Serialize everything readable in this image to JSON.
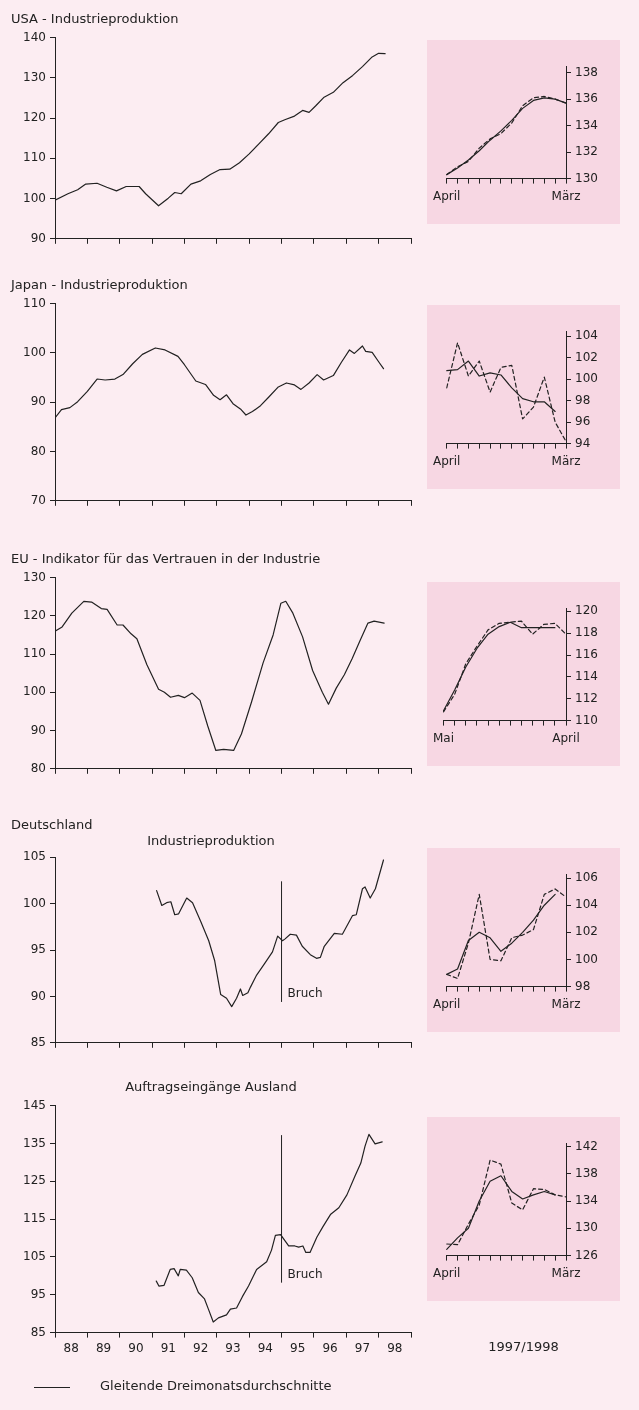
{
  "chart_data": [
    {
      "type": "line",
      "title": "USA - Industrieproduktion",
      "x": [
        88.0,
        88.4,
        88.7,
        88.95,
        89.3,
        89.6,
        89.9,
        90.2,
        90.6,
        90.8,
        91.2,
        91.5,
        91.7,
        91.9,
        92.2,
        92.5,
        92.8,
        93.1,
        93.4,
        93.7,
        94.0,
        94.3,
        94.6,
        94.9,
        95.1,
        95.4,
        95.65,
        95.85,
        96.05,
        96.3,
        96.6,
        96.9,
        97.2,
        97.5,
        97.8,
        98.0,
        98.2
      ],
      "values": [
        99.6,
        101.2,
        102.2,
        103.6,
        103.8,
        102.8,
        101.9,
        103.0,
        103.0,
        101.2,
        98.2,
        100.1,
        101.5,
        101.2,
        103.6,
        104.4,
        106.0,
        107.2,
        107.3,
        108.9,
        111.1,
        113.6,
        116.1,
        118.9,
        119.6,
        120.5,
        121.9,
        121.4,
        123.0,
        125.1,
        126.4,
        128.8,
        130.6,
        132.8,
        135.2,
        136.1,
        136.0
      ],
      "color": "#222222",
      "xlim": [
        88,
        99
      ],
      "xticks": [
        {
          "value": 88,
          "label": null
        },
        {
          "value": 89,
          "label": null
        },
        {
          "value": 90,
          "label": null
        },
        {
          "value": 91,
          "label": null
        },
        {
          "value": 92,
          "label": null
        },
        {
          "value": 93,
          "label": null
        },
        {
          "value": 94,
          "label": null
        },
        {
          "value": 95,
          "label": null
        },
        {
          "value": 96,
          "label": null
        },
        {
          "value": 97,
          "label": null
        },
        {
          "value": 98,
          "label": null
        },
        {
          "value": 99,
          "label": null
        }
      ],
      "ylim": [
        90,
        140
      ],
      "yticks": [
        90,
        100,
        110,
        120,
        130,
        140
      ],
      "tick_labels": "y"
    },
    {
      "type": "line",
      "categories": [
        "April",
        null,
        null,
        null,
        null,
        null,
        null,
        null,
        null,
        null,
        null,
        "März"
      ],
      "series": [
        {
          "color": "#222222",
          "axis": "y2",
          "values": [
            130.3,
            130.8,
            131.4,
            132.1,
            132.9,
            133.6,
            134.4,
            135.3,
            135.9,
            136.1,
            136.0,
            135.7
          ]
        },
        {
          "color": "#222222",
          "axis": "y2",
          "line_style": "dashed",
          "values": [
            130.3,
            130.9,
            131.3,
            132.3,
            133.0,
            133.4,
            134.2,
            135.5,
            136.1,
            136.2,
            136.0,
            135.7
          ]
        }
      ],
      "y2lim": [
        130,
        138.5
      ],
      "y2ticks": [
        130,
        132,
        134,
        136,
        138
      ]
    },
    {
      "type": "line",
      "title": "Japan - Industrieproduktion",
      "x": [
        88.0,
        88.2,
        88.46,
        88.7,
        89.0,
        89.3,
        89.55,
        89.85,
        90.1,
        90.4,
        90.7,
        91.1,
        91.4,
        91.8,
        92.0,
        92.35,
        92.65,
        92.9,
        93.1,
        93.3,
        93.5,
        93.75,
        93.9,
        94.1,
        94.35,
        94.6,
        94.9,
        95.15,
        95.4,
        95.6,
        95.85,
        96.1,
        96.3,
        96.6,
        96.85,
        97.1,
        97.25,
        97.5,
        97.6,
        97.8,
        98.0,
        98.15
      ],
      "values": [
        86.8,
        88.5,
        88.9,
        90.1,
        92.2,
        94.7,
        94.5,
        94.7,
        95.6,
        97.8,
        99.7,
        101.0,
        100.6,
        99.3,
        97.6,
        94.3,
        93.6,
        91.4,
        90.5,
        91.5,
        89.7,
        88.5,
        87.4,
        88.1,
        89.3,
        91.0,
        93.1,
        93.9,
        93.5,
        92.6,
        93.9,
        95.6,
        94.5,
        95.4,
        98.1,
        100.6,
        99.9,
        101.4,
        100.3,
        100.1,
        98.2,
        96.8
      ],
      "color": "#222222",
      "xlim": [
        88,
        99
      ],
      "xticks": [
        {
          "value": 88,
          "label": null
        },
        {
          "value": 89,
          "label": null
        },
        {
          "value": 90,
          "label": null
        },
        {
          "value": 91,
          "label": null
        },
        {
          "value": 92,
          "label": null
        },
        {
          "value": 93,
          "label": null
        },
        {
          "value": 94,
          "label": null
        },
        {
          "value": 95,
          "label": null
        },
        {
          "value": 96,
          "label": null
        },
        {
          "value": 97,
          "label": null
        },
        {
          "value": 98,
          "label": null
        },
        {
          "value": 99,
          "label": null
        }
      ],
      "ylim": [
        70,
        110
      ],
      "yticks": [
        70,
        80,
        90,
        100,
        110
      ],
      "tick_labels": "y"
    },
    {
      "type": "line",
      "categories": [
        "April",
        null,
        null,
        null,
        null,
        null,
        null,
        null,
        null,
        null,
        null,
        "März"
      ],
      "series": [
        {
          "color": "#222222",
          "axis": "y2",
          "values": [
            100.8,
            100.9,
            101.7,
            100.3,
            100.6,
            100.4,
            99.2,
            98.2,
            97.9,
            97.9,
            97.0,
            null
          ]
        },
        {
          "color": "#222222",
          "axis": "y2",
          "line_style": "dashed",
          "values": [
            99.2,
            103.4,
            100.3,
            101.7,
            98.8,
            101.1,
            101.3,
            96.3,
            97.4,
            100.2,
            96.0,
            94.2
          ]
        }
      ],
      "y2lim": [
        94,
        104.5
      ],
      "y2ticks": [
        94,
        96,
        98,
        100,
        102,
        104
      ]
    },
    {
      "type": "line",
      "title": "EU - Indikator für das Vertrauen in der Industrie",
      "x": [
        88.0,
        88.22,
        88.52,
        88.89,
        89.13,
        89.43,
        89.61,
        89.92,
        90.1,
        90.35,
        90.53,
        90.84,
        91.2,
        91.38,
        91.57,
        91.81,
        92.0,
        92.24,
        92.48,
        92.72,
        92.97,
        93.21,
        93.52,
        93.76,
        94.07,
        94.43,
        94.74,
        94.98,
        95.13,
        95.35,
        95.65,
        95.96,
        96.26,
        96.45,
        96.69,
        96.94,
        97.18,
        97.42,
        97.67,
        97.86,
        98.17
      ],
      "values": [
        116.0,
        117.1,
        120.7,
        123.8,
        123.6,
        121.9,
        121.7,
        117.6,
        117.6,
        115.3,
        114.0,
        107.2,
        100.8,
        100.0,
        98.7,
        99.2,
        98.6,
        99.8,
        97.9,
        91.2,
        84.8,
        85.1,
        84.8,
        89.1,
        97.4,
        107.7,
        115.0,
        123.3,
        123.8,
        120.7,
        114.5,
        105.7,
        100.0,
        96.9,
        101.1,
        104.6,
        108.8,
        113.4,
        118.1,
        118.6,
        118.1
      ],
      "color": "#222222",
      "xlim": [
        88,
        99
      ],
      "xticks": [
        {
          "value": 88,
          "label": null
        },
        {
          "value": 89,
          "label": null
        },
        {
          "value": 90,
          "label": null
        },
        {
          "value": 91,
          "label": null
        },
        {
          "value": 92,
          "label": null
        },
        {
          "value": 93,
          "label": null
        },
        {
          "value": 94,
          "label": null
        },
        {
          "value": 95,
          "label": null
        },
        {
          "value": 96,
          "label": null
        },
        {
          "value": 97,
          "label": null
        },
        {
          "value": 98,
          "label": null
        },
        {
          "value": 99,
          "label": null
        }
      ],
      "ylim": [
        80,
        130
      ],
      "yticks": [
        80,
        90,
        100,
        110,
        120,
        130
      ],
      "tick_labels": "y"
    },
    {
      "type": "line",
      "categories": [
        "Mai",
        null,
        null,
        null,
        null,
        null,
        null,
        null,
        null,
        null,
        null,
        "April"
      ],
      "series": [
        {
          "color": "#222222",
          "axis": "y2",
          "values": [
            110.9,
            112.8,
            114.9,
            116.6,
            117.9,
            118.6,
            119.0,
            118.5,
            118.5,
            118.5,
            118.5,
            null
          ]
        },
        {
          "color": "#222222",
          "axis": "y2",
          "line_style": "dashed",
          "values": [
            110.8,
            112.4,
            115.2,
            116.8,
            118.3,
            118.9,
            119.0,
            119.1,
            117.9,
            118.8,
            118.9,
            117.9
          ]
        }
      ],
      "y2lim": [
        110,
        120.3
      ],
      "y2ticks": [
        110,
        112,
        114,
        116,
        118,
        120
      ]
    },
    {
      "type": "line",
      "title": "Deutschland",
      "subtitle": "Industrieproduktion",
      "x": [
        91.14,
        91.3,
        91.45,
        91.58,
        91.7,
        91.82,
        92.07,
        92.25,
        92.5,
        92.75,
        92.93,
        93.12,
        93.3,
        93.46,
        93.61,
        93.73,
        93.8,
        93.96,
        94.04,
        94.23,
        94.47,
        94.72,
        94.88,
        95.03,
        95.11,
        95.27,
        95.46,
        95.64,
        95.89,
        96.08,
        96.2,
        96.32,
        96.63,
        96.88,
        97.19,
        97.31,
        97.5,
        97.58,
        97.74,
        97.9,
        98.15
      ],
      "values": [
        101.4,
        99.8,
        100.1,
        100.2,
        98.8,
        98.9,
        100.6,
        100.1,
        98.1,
        96.0,
        93.9,
        90.2,
        89.8,
        88.9,
        89.8,
        90.8,
        90.1,
        90.4,
        91.0,
        92.3,
        93.5,
        94.8,
        96.5,
        96.0,
        96.2,
        96.7,
        96.6,
        95.4,
        94.5,
        94.1,
        94.2,
        95.4,
        96.8,
        96.7,
        98.7,
        98.8,
        101.6,
        101.8,
        100.6,
        101.6,
        104.7
      ],
      "color": "#222222",
      "xlim": [
        88,
        99
      ],
      "xticks": [
        {
          "value": 88,
          "label": null
        },
        {
          "value": 89,
          "label": null
        },
        {
          "value": 90,
          "label": null
        },
        {
          "value": 91,
          "label": null
        },
        {
          "value": 92,
          "label": null
        },
        {
          "value": 93,
          "label": null
        },
        {
          "value": 94,
          "label": null
        },
        {
          "value": 95,
          "label": null
        },
        {
          "value": 96,
          "label": null
        },
        {
          "value": 97,
          "label": null
        },
        {
          "value": 98,
          "label": null
        },
        {
          "value": 99,
          "label": null
        }
      ],
      "ylim": [
        85,
        105
      ],
      "yticks": [
        85,
        90,
        95,
        100,
        105
      ],
      "tick_labels": "y",
      "ref_lines": [
        {
          "axis": "x",
          "value": 95.0,
          "label": "Bruch"
        }
      ]
    },
    {
      "type": "line",
      "categories": [
        "April",
        null,
        null,
        null,
        null,
        null,
        null,
        null,
        null,
        null,
        null,
        "März"
      ],
      "series": [
        {
          "color": "#222222",
          "axis": "y2",
          "values": [
            98.9,
            99.3,
            101.4,
            102.0,
            101.6,
            100.6,
            101.2,
            102.0,
            102.9,
            104.0,
            104.8,
            null
          ]
        },
        {
          "color": "#222222",
          "axis": "y2",
          "line_style": "dashed",
          "values": [
            98.9,
            98.6,
            101.2,
            104.8,
            100.0,
            99.9,
            101.6,
            101.8,
            102.2,
            104.8,
            105.2,
            104.6
          ]
        }
      ],
      "y2lim": [
        98,
        106.3
      ],
      "y2ticks": [
        98,
        100,
        102,
        104,
        106
      ]
    },
    {
      "type": "line",
      "title": "Auftragseingänge Ausland",
      "x": [
        91.13,
        91.21,
        91.37,
        91.56,
        91.68,
        91.81,
        91.87,
        92.06,
        92.24,
        92.43,
        92.62,
        92.74,
        92.89,
        93.05,
        93.3,
        93.42,
        93.61,
        93.79,
        93.98,
        94.23,
        94.54,
        94.69,
        94.81,
        94.97,
        95.22,
        95.41,
        95.53,
        95.66,
        95.75,
        95.88,
        96.09,
        96.28,
        96.52,
        96.77,
        97.02,
        97.27,
        97.45,
        97.58,
        97.7,
        97.89,
        98.11
      ],
      "values": [
        98.6,
        97.3,
        97.5,
        101.7,
        101.9,
        100.0,
        101.7,
        101.5,
        99.5,
        95.6,
        93.9,
        91.2,
        87.8,
        88.9,
        89.7,
        91.2,
        91.5,
        94.5,
        97.3,
        101.7,
        103.7,
        106.8,
        110.7,
        110.9,
        107.9,
        107.9,
        107.6,
        107.9,
        106.2,
        106.2,
        110.2,
        113.0,
        116.3,
        118.0,
        121.4,
        126.4,
        129.8,
        134.3,
        137.4,
        134.9,
        135.4
      ],
      "color": "#222222",
      "xlim": [
        88,
        99
      ],
      "xticks": [
        {
          "value": 88,
          "label": null
        },
        {
          "value": 88.5,
          "label": "88"
        },
        {
          "value": 89,
          "label": null
        },
        {
          "value": 89.5,
          "label": "89"
        },
        {
          "value": 90,
          "label": null
        },
        {
          "value": 90.5,
          "label": "90"
        },
        {
          "value": 91,
          "label": null
        },
        {
          "value": 91.5,
          "label": "91"
        },
        {
          "value": 92,
          "label": null
        },
        {
          "value": 92.5,
          "label": "92"
        },
        {
          "value": 93,
          "label": null
        },
        {
          "value": 93.5,
          "label": "93"
        },
        {
          "value": 94,
          "label": null
        },
        {
          "value": 94.5,
          "label": "94"
        },
        {
          "value": 95,
          "label": null
        },
        {
          "value": 95.5,
          "label": "95"
        },
        {
          "value": 96,
          "label": null
        },
        {
          "value": 96.5,
          "label": "96"
        },
        {
          "value": 97,
          "label": null
        },
        {
          "value": 97.5,
          "label": "97"
        },
        {
          "value": 98,
          "label": null
        },
        {
          "value": 98.5,
          "label": "98"
        },
        {
          "value": 99,
          "label": null
        }
      ],
      "ylim": [
        85,
        145
      ],
      "yticks": [
        85,
        95,
        105,
        115,
        125,
        135,
        145
      ],
      "ref_lines": [
        {
          "axis": "x",
          "value": 95.0,
          "label": "Bruch"
        }
      ],
      "annotations": [
        "Gleitende Dreimonatsdurchschnitte"
      ]
    },
    {
      "type": "line",
      "categories": [
        "April",
        null,
        null,
        null,
        null,
        null,
        null,
        null,
        null,
        null,
        null,
        "März"
      ],
      "xlabel": "1997/1998",
      "series": [
        {
          "color": "#222222",
          "axis": "y2",
          "values": [
            126.9,
            128.6,
            130.0,
            134.0,
            136.9,
            137.7,
            135.4,
            134.3,
            134.9,
            135.4,
            134.9,
            null
          ]
        },
        {
          "color": "#222222",
          "axis": "y2",
          "line_style": "dashed",
          "values": [
            127.7,
            127.6,
            130.6,
            133.4,
            140.0,
            139.4,
            133.7,
            132.7,
            135.8,
            135.7,
            134.9,
            134.6
          ]
        }
      ],
      "y2lim": [
        126,
        142.5
      ],
      "y2ticks": [
        126,
        130,
        134,
        138,
        142
      ]
    }
  ]
}
